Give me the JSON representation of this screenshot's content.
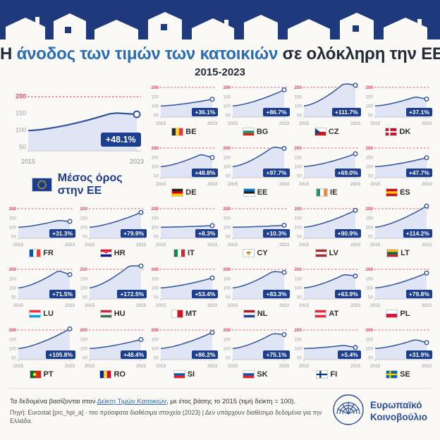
{
  "title": {
    "pre": "Η ",
    "highlight": "άνοδος των τιμών των κατοικιών",
    "post": " σε ολόκληρη την ΕΕ"
  },
  "subtitle": "2015-2023",
  "axis": {
    "y_ticks": [
      200,
      150,
      100,
      50
    ],
    "x_labels": [
      "2015",
      "2023"
    ]
  },
  "eu": {
    "label1": "Μέσος όρος",
    "label2": "στην ΕΕ"
  },
  "chart_data": {
    "type": "line",
    "title": "Η άνοδος των τιμών των κατοικιών σε ολόκληρη την ΕΕ (2015-2023)",
    "note": "Δείκτης Τιμών Κατοικιών, 2015 = 100",
    "x_labels": [
      "2015",
      "2023"
    ],
    "y_ticks": [
      50,
      100,
      150,
      200
    ],
    "eu_average": {
      "code": "EU",
      "pct": "+48.1%",
      "end": 148.1,
      "peak": 152.5
    },
    "series": [
      {
        "code": "BE",
        "pct": "+36.1%",
        "end": 136.1,
        "flag": {
          "t": "v",
          "c": [
            "#2d2926",
            "#f9d90f",
            "#ef3340"
          ]
        }
      },
      {
        "code": "BG",
        "pct": "+86.7%",
        "end": 186.7,
        "flag": {
          "t": "h",
          "c": [
            "#ffffff",
            "#00966e",
            "#d62612"
          ]
        }
      },
      {
        "code": "CZ",
        "pct": "+111.7%",
        "end": 211.7,
        "peak": 222,
        "flag": {
          "t": "cz"
        }
      },
      {
        "code": "DK",
        "pct": "+37.1%",
        "end": 137.1,
        "peak": 149,
        "flag": {
          "t": "cross",
          "bg": "#c8102e",
          "cr": "#ffffff"
        }
      },
      {
        "code": "DE",
        "pct": "+48.8%",
        "end": 148.8,
        "peak": 166,
        "flag": {
          "t": "h",
          "c": [
            "#1d1d1b",
            "#dd0000",
            "#ffce00"
          ]
        }
      },
      {
        "code": "EE",
        "pct": "+97.7%",
        "end": 197.7,
        "peak": 206,
        "flag": {
          "t": "h",
          "c": [
            "#0072ce",
            "#1d1d1b",
            "#ffffff"
          ]
        }
      },
      {
        "code": "IE",
        "pct": "+69.0%",
        "end": 169.0,
        "flag": {
          "t": "v",
          "c": [
            "#169b62",
            "#ffffff",
            "#ff883e"
          ]
        }
      },
      {
        "code": "ES",
        "pct": "+47.7%",
        "end": 147.7,
        "flag": {
          "t": "h",
          "c": [
            "#c60b1e",
            "#ffc400",
            "#c60b1e"
          ]
        }
      },
      {
        "code": "FR",
        "pct": "+31.3%",
        "end": 131.3,
        "peak": 137,
        "flag": {
          "t": "v",
          "c": [
            "#0055a4",
            "#ffffff",
            "#ef4135"
          ]
        }
      },
      {
        "code": "HR",
        "pct": "+79.9%",
        "end": 179.9,
        "flag": {
          "t": "hr"
        }
      },
      {
        "code": "IT",
        "pct": "+8.3%",
        "end": 108.3,
        "flag": {
          "t": "v",
          "c": [
            "#009246",
            "#ffffff",
            "#ce2b37"
          ]
        }
      },
      {
        "code": "CY",
        "pct": "+10.3%",
        "end": 110.3,
        "flag": {
          "t": "cy"
        }
      },
      {
        "code": "LV",
        "pct": "+90.9%",
        "end": 190.9,
        "flag": {
          "t": "h",
          "c": [
            "#9e3039",
            "#ffffff",
            "#9e3039"
          ]
        }
      },
      {
        "code": "LT",
        "pct": "+114.2%",
        "end": 214.2,
        "flag": {
          "t": "h",
          "c": [
            "#fdb913",
            "#006a44",
            "#c1272d"
          ]
        }
      },
      {
        "code": "LU",
        "pct": "+71.5%",
        "end": 171.5,
        "peak": 193,
        "flag": {
          "t": "h",
          "c": [
            "#ef3340",
            "#ffffff",
            "#00a2e1"
          ]
        }
      },
      {
        "code": "HU",
        "pct": "+172.5%",
        "end": 272.5,
        "flag": {
          "t": "h",
          "c": [
            "#cd2a3e",
            "#ffffff",
            "#436f4d"
          ]
        }
      },
      {
        "code": "MT",
        "pct": "+53.4%",
        "end": 153.4,
        "flag": {
          "t": "v",
          "c": [
            "#ffffff",
            "#cf142b"
          ]
        }
      },
      {
        "code": "NL",
        "pct": "+83.3%",
        "end": 183.3,
        "peak": 189,
        "flag": {
          "t": "h",
          "c": [
            "#ae1c28",
            "#ffffff",
            "#21468b"
          ]
        }
      },
      {
        "code": "AT",
        "pct": "+63.9%",
        "end": 163.9,
        "peak": 172,
        "flag": {
          "t": "h",
          "c": [
            "#ed2939",
            "#ffffff",
            "#ed2939"
          ]
        }
      },
      {
        "code": "PL",
        "pct": "+79.8%",
        "end": 179.8,
        "flag": {
          "t": "h",
          "c": [
            "#ffffff",
            "#dc143c"
          ]
        }
      },
      {
        "code": "PT",
        "pct": "+105.8%",
        "end": 205.8,
        "flag": {
          "t": "pt"
        }
      },
      {
        "code": "RO",
        "pct": "+48.4%",
        "end": 148.4,
        "flag": {
          "t": "v",
          "c": [
            "#002b7f",
            "#fcd116",
            "#ce1126"
          ]
        }
      },
      {
        "code": "SI",
        "pct": "+86.2%",
        "end": 186.2,
        "flag": {
          "t": "h",
          "c": [
            "#ffffff",
            "#005da4",
            "#ed1c24"
          ]
        }
      },
      {
        "code": "SK",
        "pct": "+75.1%",
        "end": 175.1,
        "peak": 181,
        "flag": {
          "t": "h",
          "c": [
            "#ffffff",
            "#0b4ea2",
            "#ee1c25"
          ]
        }
      },
      {
        "code": "FI",
        "pct": "+5.4%",
        "end": 105.4,
        "peak": 117,
        "flag": {
          "t": "cross",
          "bg": "#ffffff",
          "cr": "#003580"
        }
      },
      {
        "code": "SE",
        "pct": "+31.9%",
        "end": 131.9,
        "peak": 148,
        "flag": {
          "t": "cross",
          "bg": "#006aa7",
          "cr": "#fecc02"
        }
      }
    ]
  },
  "footer": {
    "l1a": "Τα δεδομένα βασίζονται στον ",
    "l1link": "Δείκτη Τιμών Κατοικιών",
    "l1b": ", με έτος βάσης το 2015 (τιμή δείκτη = 100).",
    "l2": "Πηγή: Eurostat [prc_hpi_a] · πιο πρόσφατα διαθέσιμα στοιχεία (2023) | Δεν υπάρχουν διαθέσιμα δεδομένα για την Ελλάδα."
  },
  "logo": {
    "line1": "Ευρωπαϊκό",
    "line2": "Κοινοβούλιο"
  },
  "colors": {
    "accent_blue": "#2a6db5",
    "badge_blue": "#1c3e90",
    "line_blue": "#30549b",
    "banner_blue": "#1e3a7d",
    "red": "#e34561"
  }
}
